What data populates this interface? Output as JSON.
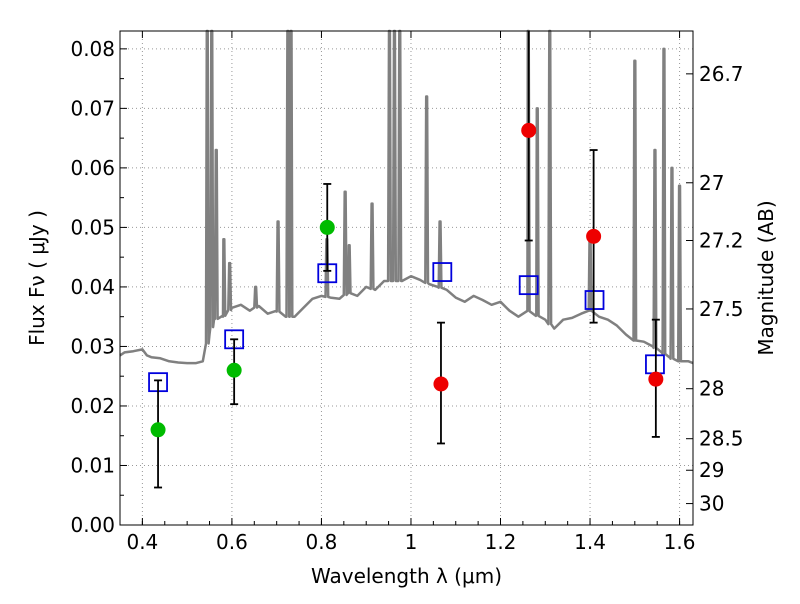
{
  "chart_data": {
    "type": "scatter",
    "xlabel": "Wavelength  λ (μm)",
    "ylabel": "Flux  Fν ( μJy )",
    "ylabel_right": "Magnitude (AB)",
    "xlim": [
      0.35,
      1.63
    ],
    "ylim": [
      0.0,
      0.083
    ],
    "grid": true,
    "x_ticks": [
      0.4,
      0.6,
      0.8,
      1.0,
      1.2,
      1.4,
      1.6
    ],
    "x_tick_labels": [
      "0.4",
      "0.6",
      "0.8",
      "1",
      "1.2",
      "1.4",
      "1.6"
    ],
    "y_ticks": [
      0.0,
      0.01,
      0.02,
      0.03,
      0.04,
      0.05,
      0.06,
      0.07,
      0.08
    ],
    "y_tick_labels": [
      "0.00",
      "0.01",
      "0.02",
      "0.03",
      "0.04",
      "0.05",
      "0.06",
      "0.07",
      "0.08"
    ],
    "right_ticks": [
      {
        "label": "26.7",
        "flux": 0.0758
      },
      {
        "label": "27",
        "flux": 0.0575
      },
      {
        "label": "27.2",
        "flux": 0.0478
      },
      {
        "label": "27.5",
        "flux": 0.0363
      },
      {
        "label": "28",
        "flux": 0.0229
      },
      {
        "label": "28.5",
        "flux": 0.0145
      },
      {
        "label": "29",
        "flux": 0.0092
      },
      {
        "label": "30",
        "flux": 0.0036
      }
    ],
    "colors": {
      "spectrum": "#808080",
      "green": "#00bb00",
      "red": "#ee0000",
      "model_box": "#0000dd",
      "error_bar": "#000000",
      "grid": "#999999"
    },
    "series": [
      {
        "kind": "spectrum",
        "x": [
          0.35,
          0.36,
          0.38,
          0.4,
          0.41,
          0.42,
          0.44,
          0.46,
          0.48,
          0.5,
          0.52,
          0.535,
          0.55,
          0.56,
          0.58,
          0.6,
          0.62,
          0.64,
          0.66,
          0.68,
          0.7,
          0.72,
          0.74,
          0.76,
          0.78,
          0.8,
          0.82,
          0.84,
          0.86,
          0.88,
          0.9,
          0.92,
          0.94,
          0.96,
          0.98,
          1.0,
          1.02,
          1.04,
          1.06,
          1.08,
          1.1,
          1.12,
          1.14,
          1.16,
          1.18,
          1.2,
          1.22,
          1.24,
          1.26,
          1.28,
          1.3,
          1.32,
          1.34,
          1.36,
          1.38,
          1.4,
          1.42,
          1.44,
          1.46,
          1.48,
          1.5,
          1.52,
          1.54,
          1.56,
          1.58,
          1.6,
          1.62,
          1.63
        ],
        "y": [
          0.0285,
          0.029,
          0.0292,
          0.0295,
          0.0285,
          0.0282,
          0.028,
          0.0275,
          0.0273,
          0.0272,
          0.0272,
          0.0275,
          0.032,
          0.0345,
          0.035,
          0.0365,
          0.037,
          0.036,
          0.0368,
          0.0355,
          0.036,
          0.035,
          0.035,
          0.0365,
          0.038,
          0.0385,
          0.0382,
          0.038,
          0.039,
          0.0385,
          0.04,
          0.0395,
          0.041,
          0.041,
          0.041,
          0.0418,
          0.0412,
          0.0405,
          0.04,
          0.0395,
          0.0382,
          0.0375,
          0.0385,
          0.0378,
          0.037,
          0.0375,
          0.036,
          0.035,
          0.036,
          0.0352,
          0.0345,
          0.033,
          0.0345,
          0.0348,
          0.0355,
          0.036,
          0.035,
          0.0345,
          0.0335,
          0.032,
          0.031,
          0.0308,
          0.03,
          0.029,
          0.028,
          0.0275,
          0.0275,
          0.0272
        ],
        "emission_lines": [
          {
            "x": 0.545,
            "peak": 0.084
          },
          {
            "x": 0.555,
            "peak": 0.084
          },
          {
            "x": 0.565,
            "peak": 0.063
          },
          {
            "x": 0.582,
            "peak": 0.048
          },
          {
            "x": 0.595,
            "peak": 0.044
          },
          {
            "x": 0.653,
            "peak": 0.04
          },
          {
            "x": 0.703,
            "peak": 0.051
          },
          {
            "x": 0.725,
            "peak": 0.084
          },
          {
            "x": 0.732,
            "peak": 0.084
          },
          {
            "x": 0.812,
            "peak": 0.048
          },
          {
            "x": 0.853,
            "peak": 0.056
          },
          {
            "x": 0.862,
            "peak": 0.047
          },
          {
            "x": 0.913,
            "peak": 0.054
          },
          {
            "x": 0.952,
            "peak": 0.084
          },
          {
            "x": 0.963,
            "peak": 0.084
          },
          {
            "x": 0.975,
            "peak": 0.084
          },
          {
            "x": 1.035,
            "peak": 0.072
          },
          {
            "x": 1.065,
            "peak": 0.051
          },
          {
            "x": 1.262,
            "peak": 0.084
          },
          {
            "x": 1.282,
            "peak": 0.07
          },
          {
            "x": 1.31,
            "peak": 0.084
          },
          {
            "x": 1.4,
            "peak": 0.049
          },
          {
            "x": 1.5,
            "peak": 0.078
          },
          {
            "x": 1.545,
            "peak": 0.063
          },
          {
            "x": 1.565,
            "peak": 0.08
          },
          {
            "x": 1.583,
            "peak": 0.06
          },
          {
            "x": 1.6,
            "peak": 0.057
          }
        ]
      },
      {
        "kind": "model_boxes",
        "points": [
          {
            "x": 0.435,
            "y": 0.024
          },
          {
            "x": 0.605,
            "y": 0.0312
          },
          {
            "x": 0.813,
            "y": 0.0423
          },
          {
            "x": 1.07,
            "y": 0.0425
          },
          {
            "x": 1.263,
            "y": 0.0403
          },
          {
            "x": 1.41,
            "y": 0.0378
          },
          {
            "x": 1.545,
            "y": 0.027
          }
        ]
      },
      {
        "kind": "observed_green",
        "points": [
          {
            "x": 0.435,
            "y": 0.016,
            "ylo": 0.0063,
            "yhi": 0.0243
          },
          {
            "x": 0.605,
            "y": 0.026,
            "ylo": 0.0203,
            "yhi": 0.0312
          },
          {
            "x": 0.813,
            "y": 0.05,
            "ylo": 0.0427,
            "yhi": 0.0573
          }
        ]
      },
      {
        "kind": "observed_red",
        "points": [
          {
            "x": 1.067,
            "y": 0.0237,
            "ylo": 0.0137,
            "yhi": 0.034
          },
          {
            "x": 1.263,
            "y": 0.0663,
            "ylo": 0.0478,
            "yhi": 0.083
          },
          {
            "x": 1.408,
            "y": 0.0485,
            "ylo": 0.034,
            "yhi": 0.063
          },
          {
            "x": 1.547,
            "y": 0.0245,
            "ylo": 0.0148,
            "yhi": 0.0345
          }
        ]
      }
    ]
  }
}
